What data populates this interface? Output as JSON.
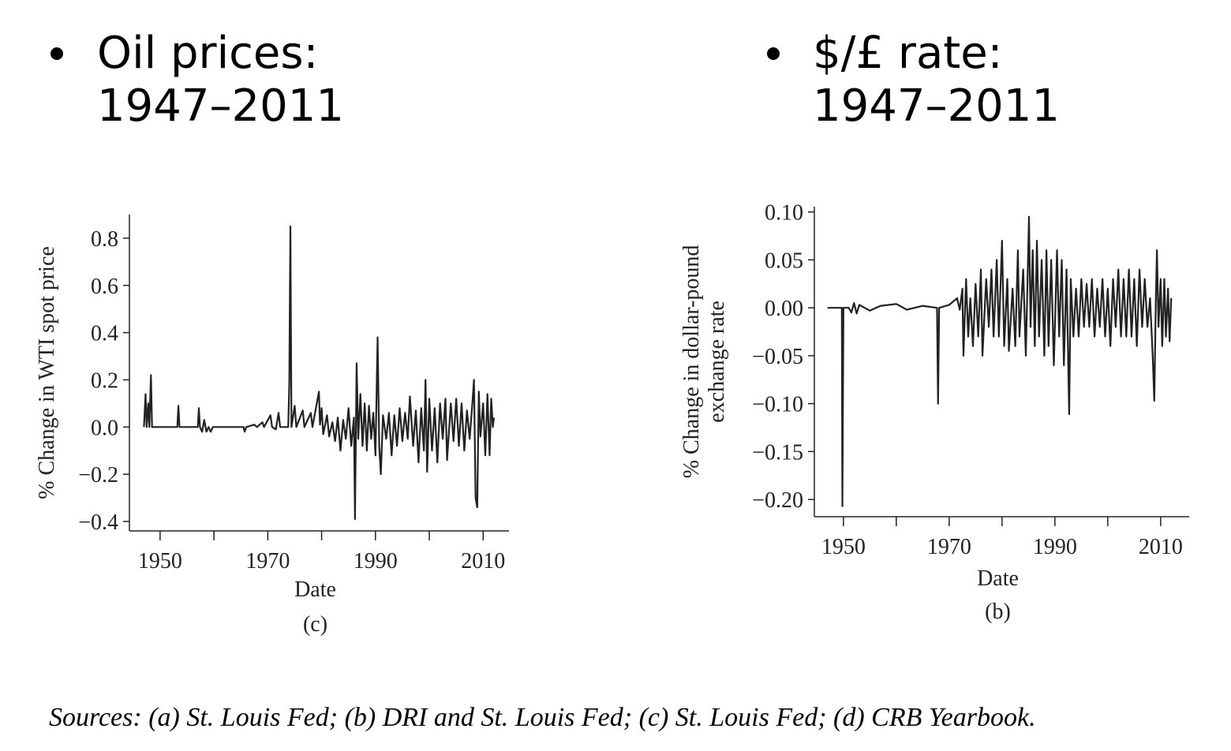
{
  "bullets": [
    {
      "lines": [
        "Oil prices:",
        "1947–2011"
      ]
    },
    {
      "lines": [
        "$/£ rate:",
        "1947–2011"
      ]
    }
  ],
  "footnote": "Sources: (a) St. Louis Fed; (b) DRI and St. Louis Fed; (c) St. Louis Fed; (d) CRB Yearbook.",
  "chart_data": [
    {
      "type": "line",
      "ylabel": "% Change in WTI spot price",
      "xlabel": "Date",
      "caption": "(c)",
      "color": "#222222",
      "xlim": [
        1944.3,
        2014.8
      ],
      "xticks": [
        1950,
        1970,
        1990,
        2010
      ],
      "xminorticks": [
        1960,
        1980,
        2000
      ],
      "ylim": [
        -0.44,
        0.9
      ],
      "yticks": [
        {
          "value": -0.4,
          "label": "−0.4"
        },
        {
          "value": -0.2,
          "label": "−0.2"
        },
        {
          "value": 0,
          "label": "0.0"
        },
        0.2,
        0.4,
        0.6,
        0.8
      ],
      "x": [
        1947.0,
        1947.3,
        1947.5,
        1947.8,
        1948.0,
        1948.3,
        1948.5,
        1953.2,
        1953.4,
        1953.6,
        1957.0,
        1957.2,
        1957.4,
        1957.8,
        1958.2,
        1958.6,
        1959.0,
        1959.4,
        1959.8,
        1965.5,
        1965.7,
        1966.0,
        1967.5,
        1968.0,
        1969.0,
        1969.3,
        1970.5,
        1970.8,
        1971.5,
        1972.0,
        1972.3,
        1973.8,
        1974.0,
        1974.2,
        1974.4,
        1975.0,
        1975.3,
        1976.5,
        1976.8,
        1978.0,
        1978.3,
        1979.5,
        1979.7,
        1980.0,
        1980.3,
        1981.0,
        1981.4,
        1982.0,
        1982.5,
        1983.0,
        1983.5,
        1984.0,
        1984.5,
        1985.0,
        1985.5,
        1986.0,
        1986.2,
        1986.5,
        1986.8,
        1987.2,
        1987.6,
        1988.0,
        1988.4,
        1988.8,
        1989.2,
        1989.6,
        1990.0,
        1990.4,
        1990.7,
        1991.0,
        1991.4,
        1992.0,
        1992.5,
        1993.0,
        1993.5,
        1994.0,
        1994.5,
        1995.0,
        1995.5,
        1996.0,
        1996.4,
        1997.0,
        1997.5,
        1998.0,
        1998.5,
        1999.0,
        1999.3,
        1999.6,
        2000.0,
        2000.5,
        2001.0,
        2001.5,
        2002.0,
        2002.5,
        2003.0,
        2003.3,
        2004.0,
        2004.5,
        2005.0,
        2005.5,
        2006.0,
        2006.5,
        2007.0,
        2007.5,
        2008.0,
        2008.3,
        2008.6,
        2008.9,
        2009.2,
        2009.5,
        2010.0,
        2010.4,
        2010.8,
        2011.2,
        2011.5,
        2011.8,
        2012.0
      ],
      "values": [
        0,
        0.14,
        0,
        0.1,
        0,
        0.22,
        0,
        0,
        0.09,
        0,
        0,
        0.08,
        0,
        -0.02,
        0.03,
        -0.02,
        0,
        -0.02,
        0,
        0,
        -0.02,
        0,
        0.01,
        0,
        0.02,
        0,
        0.05,
        0,
        -0.01,
        0.06,
        0,
        0,
        0.19,
        0.85,
        0,
        0.09,
        0,
        0.07,
        0,
        0.06,
        0,
        0.15,
        0.01,
        0.08,
        -0.03,
        0.05,
        -0.04,
        0.02,
        -0.06,
        0.04,
        -0.1,
        0.03,
        -0.05,
        0.08,
        -0.08,
        0.04,
        -0.39,
        0.27,
        -0.05,
        0.14,
        -0.08,
        0.1,
        -0.1,
        0.09,
        -0.05,
        0.06,
        -0.12,
        0.38,
        -0.08,
        -0.2,
        0.05,
        -0.05,
        0.06,
        -0.12,
        0.05,
        -0.08,
        0.08,
        -0.06,
        0.06,
        -0.05,
        0.13,
        -0.08,
        0.07,
        -0.15,
        0.08,
        -0.1,
        0.2,
        -0.19,
        0.12,
        -0.1,
        0.08,
        -0.15,
        0.1,
        -0.05,
        0.12,
        -0.14,
        0.1,
        -0.06,
        0.12,
        -0.08,
        0.1,
        -0.1,
        0.07,
        -0.05,
        0.1,
        0.2,
        -0.3,
        -0.34,
        0.15,
        -0.04,
        0.1,
        -0.12,
        0.14,
        -0.12,
        0.12,
        0,
        0.04
      ]
    },
    {
      "type": "line",
      "ylabel": [
        "% Change in dollar-pound",
        "exchange rate"
      ],
      "xlabel": "Date",
      "caption": "(b)",
      "color": "#222222",
      "xlim": [
        1944.5,
        2015.4
      ],
      "xticks": [
        1950,
        1970,
        1990,
        2010
      ],
      "xminorticks": [
        1960,
        1980,
        2000
      ],
      "ylim": [
        -0.218,
        0.1055
      ],
      "yticks": [
        {
          "value": -0.2,
          "label": "−0.20"
        },
        {
          "value": -0.15,
          "label": "−0.15"
        },
        {
          "value": -0.1,
          "label": "−0.10"
        },
        {
          "value": -0.05,
          "label": "−0.05"
        },
        {
          "value": 0,
          "label": "0.00"
        },
        {
          "value": 0.05,
          "label": "0.05"
        },
        {
          "value": 0.1,
          "label": "0.10"
        }
      ],
      "x": [
        1947.0,
        1949.5,
        1949.7,
        1949.8,
        1950.0,
        1951.0,
        1951.5,
        1952.0,
        1952.5,
        1953.0,
        1955.0,
        1957.0,
        1960.0,
        1962.0,
        1965.0,
        1967.7,
        1967.9,
        1968.1,
        1970.0,
        1971.5,
        1972.0,
        1972.5,
        1972.7,
        1973.2,
        1973.6,
        1974.0,
        1974.5,
        1975.0,
        1975.5,
        1976.0,
        1976.3,
        1977.0,
        1977.5,
        1978.0,
        1978.4,
        1979.0,
        1979.4,
        1980.0,
        1980.4,
        1981.0,
        1981.3,
        1982.0,
        1982.5,
        1983.0,
        1983.3,
        1984.0,
        1984.5,
        1985.1,
        1985.4,
        1985.8,
        1986.2,
        1986.6,
        1987.0,
        1987.5,
        1988.0,
        1988.4,
        1988.8,
        1989.3,
        1989.8,
        1990.4,
        1990.8,
        1991.3,
        1991.7,
        1992.2,
        1992.7,
        1993.0,
        1993.5,
        1994.0,
        1994.5,
        1995.0,
        1995.5,
        1996.0,
        1996.5,
        1997.0,
        1997.5,
        1998.0,
        1998.5,
        1999.0,
        1999.5,
        2000.0,
        2000.5,
        2001.0,
        2001.5,
        2002.0,
        2002.5,
        2003.0,
        2003.5,
        2004.0,
        2004.5,
        2005.0,
        2005.5,
        2006.0,
        2006.5,
        2007.0,
        2007.5,
        2008.0,
        2008.5,
        2008.8,
        2009.1,
        2009.3,
        2009.6,
        2010.0,
        2010.3,
        2010.7,
        2011.0,
        2011.4,
        2011.7,
        2012.0
      ],
      "values": [
        0,
        0,
        0,
        -0.207,
        0,
        0,
        -0.005,
        0.005,
        -0.006,
        0.003,
        -0.003,
        0.002,
        0.004,
        -0.002,
        0.002,
        0,
        -0.1,
        0,
        0.003,
        0.01,
        -0.002,
        0.02,
        -0.05,
        0.03,
        -0.03,
        0.01,
        -0.04,
        0.025,
        -0.03,
        0.04,
        -0.05,
        0.03,
        -0.02,
        0.04,
        -0.03,
        0.05,
        -0.03,
        0.07,
        -0.04,
        0.03,
        -0.045,
        0.02,
        -0.04,
        0.06,
        -0.03,
        0.04,
        -0.05,
        0.095,
        -0.02,
        0.06,
        -0.04,
        0.07,
        -0.03,
        0.05,
        -0.05,
        0.06,
        -0.04,
        0.05,
        -0.06,
        0.06,
        -0.03,
        0.05,
        -0.06,
        0.04,
        -0.111,
        0.03,
        -0.03,
        0.02,
        -0.03,
        0.03,
        -0.02,
        0.025,
        -0.02,
        0.03,
        -0.03,
        0.02,
        -0.02,
        0.03,
        -0.03,
        0.02,
        -0.04,
        0.03,
        -0.02,
        0.04,
        -0.03,
        0.03,
        -0.03,
        0.04,
        -0.03,
        0.03,
        -0.04,
        0.04,
        -0.02,
        0.03,
        -0.02,
        0.01,
        -0.05,
        -0.097,
        0.01,
        0.06,
        -0.02,
        0.03,
        -0.04,
        0.03,
        -0.03,
        0.02,
        -0.035,
        0.01
      ]
    }
  ]
}
